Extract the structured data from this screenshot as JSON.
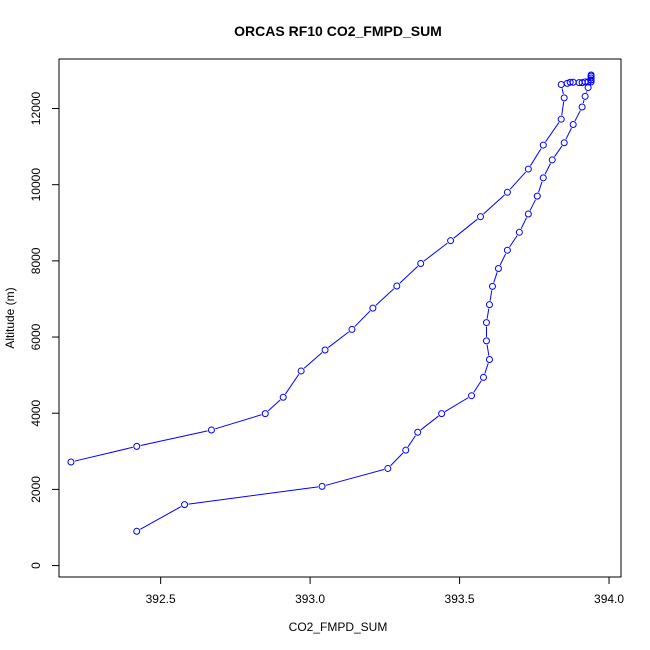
{
  "chart_data": {
    "type": "line",
    "title": "ORCAS RF10 CO2_FMPD_SUM",
    "xlabel": "CO2_FMPD_SUM",
    "ylabel": "Altitude (m)",
    "xlim": [
      392.16,
      394.04
    ],
    "ylim": [
      -300,
      13300
    ],
    "xticks": [
      392.5,
      393.0,
      393.5,
      394.0
    ],
    "xtick_labels": [
      "392.5",
      "393.0",
      "393.5",
      "394.0"
    ],
    "yticks": [
      0,
      2000,
      4000,
      6000,
      8000,
      10000,
      12000
    ],
    "ytick_labels": [
      "0",
      "2000",
      "4000",
      "6000",
      "8000",
      "10000",
      "12000"
    ],
    "grid": false,
    "legend": "none",
    "series": [
      {
        "color": "#0000ff",
        "marker": "open-circle",
        "x": [
          392.42,
          392.58,
          393.04,
          393.26,
          393.32,
          393.36,
          393.44,
          393.54,
          393.58,
          393.6,
          393.59,
          393.59,
          393.6,
          393.61,
          393.63,
          393.66,
          393.7,
          393.73,
          393.76,
          393.78,
          393.81,
          393.85,
          393.88,
          393.91,
          393.92,
          393.93,
          393.94,
          393.94,
          393.94,
          393.94,
          393.94,
          393.94,
          393.93,
          393.92,
          393.91,
          393.9,
          393.88,
          393.87,
          393.86,
          393.84,
          393.85,
          393.84,
          393.78,
          393.73,
          393.66,
          393.57,
          393.47,
          393.37,
          393.29,
          393.21,
          393.14,
          393.05,
          392.97,
          392.91,
          392.85,
          392.67,
          392.42,
          392.2
        ],
        "y": [
          900,
          1600,
          2080,
          2550,
          3030,
          3500,
          3990,
          4460,
          4940,
          5410,
          5900,
          6380,
          6850,
          7330,
          7800,
          8280,
          8750,
          9230,
          9700,
          10180,
          10650,
          11100,
          11580,
          12040,
          12320,
          12550,
          12700,
          12750,
          12800,
          12850,
          12880,
          12750,
          12700,
          12700,
          12680,
          12680,
          12690,
          12690,
          12660,
          12630,
          12280,
          11720,
          11040,
          10410,
          9800,
          9160,
          8530,
          7930,
          7340,
          6760,
          6200,
          5660,
          5110,
          4420,
          3990,
          3560,
          3130,
          2720
        ]
      }
    ]
  }
}
